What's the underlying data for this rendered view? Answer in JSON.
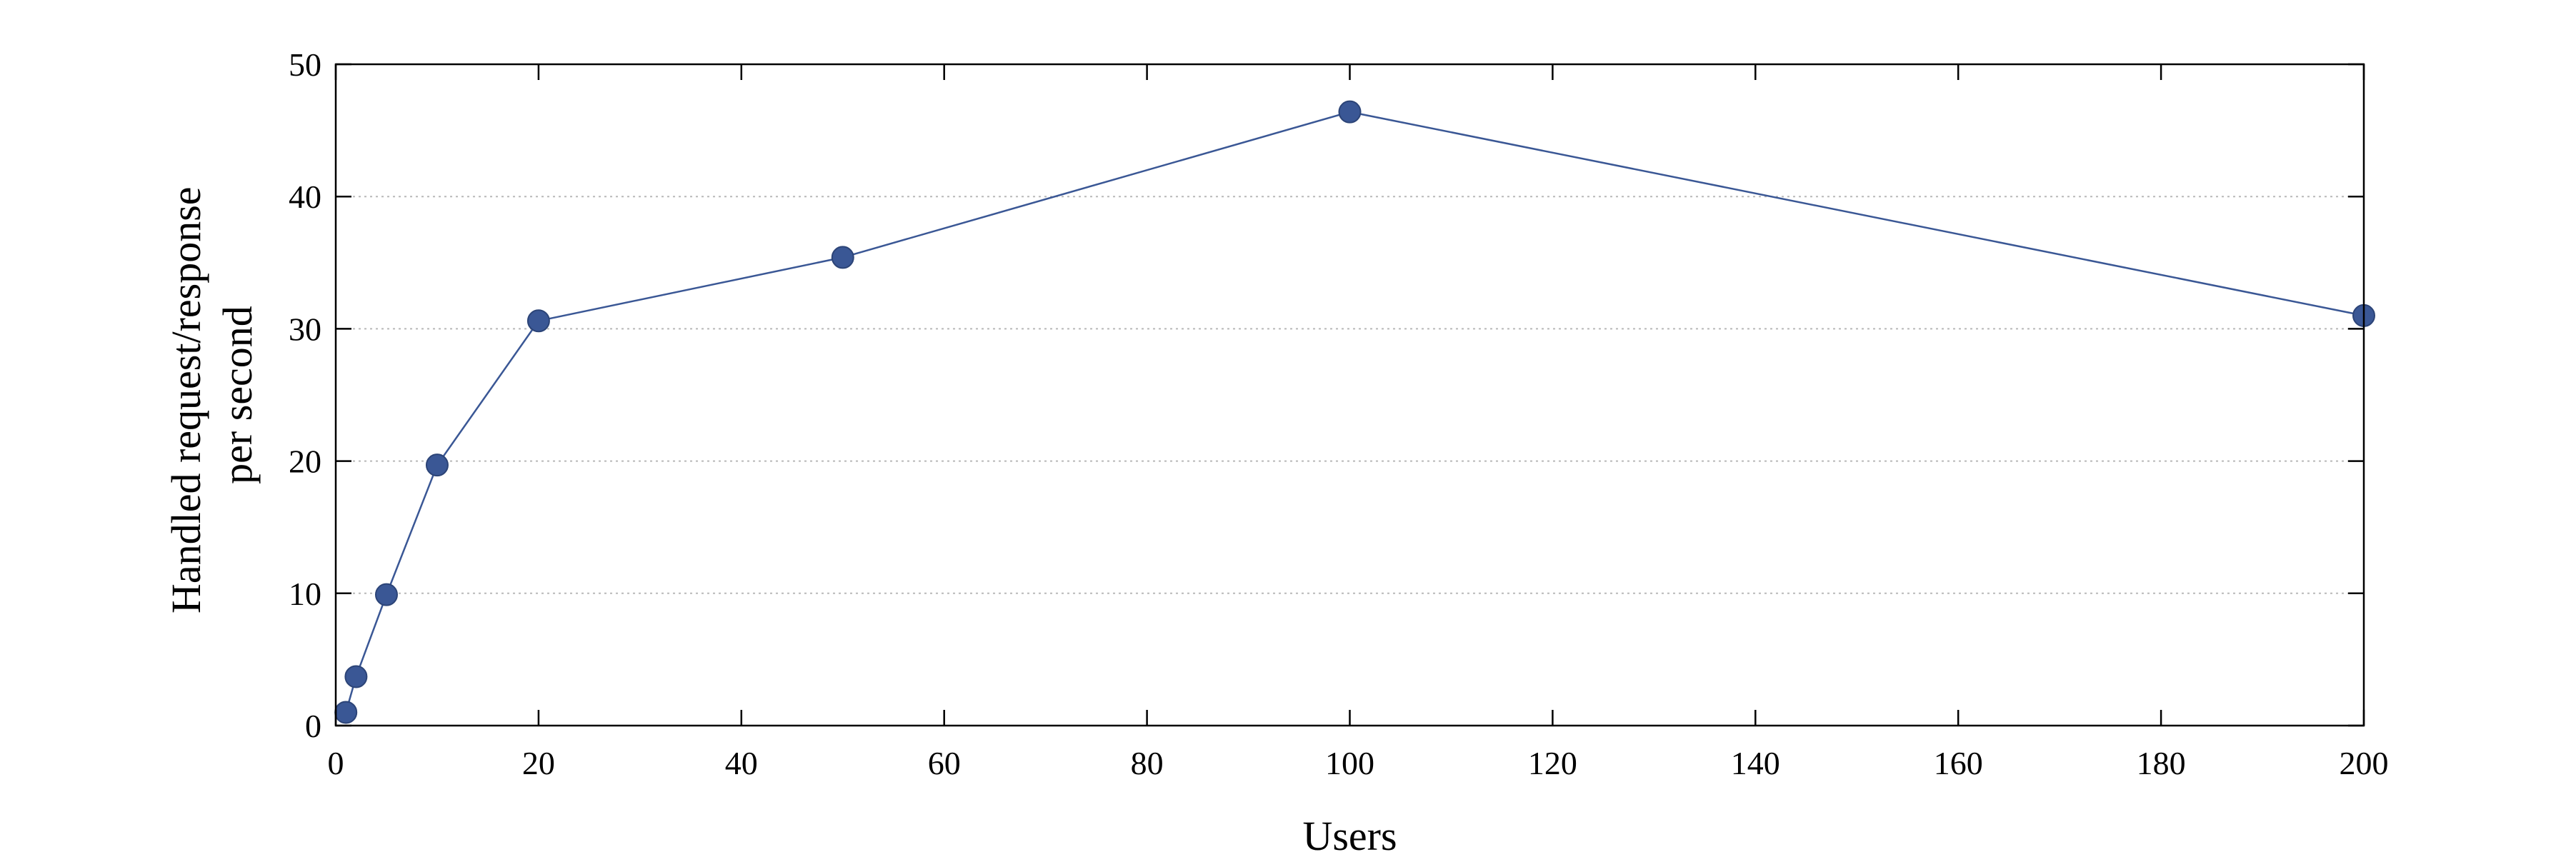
{
  "chart_data": {
    "type": "line",
    "xlabel": "Users",
    "ylabel_lines": [
      "Handled request/response",
      "per second"
    ],
    "xlim": [
      0,
      200
    ],
    "ylim": [
      0,
      50
    ],
    "xticks": [
      "0",
      "20",
      "40",
      "60",
      "80",
      "100",
      "120",
      "140",
      "160",
      "180",
      "200"
    ],
    "yticks": [
      "0",
      "10",
      "20",
      "30",
      "40",
      "50"
    ],
    "grid": "horizontal-dotted",
    "series": [
      {
        "color": "#3a5795",
        "marker": "circle",
        "x": [
          1,
          2,
          5,
          10,
          20,
          50,
          100,
          200
        ],
        "y": [
          1.0,
          3.7,
          9.9,
          19.7,
          30.6,
          35.4,
          46.4,
          31.0
        ]
      }
    ]
  }
}
